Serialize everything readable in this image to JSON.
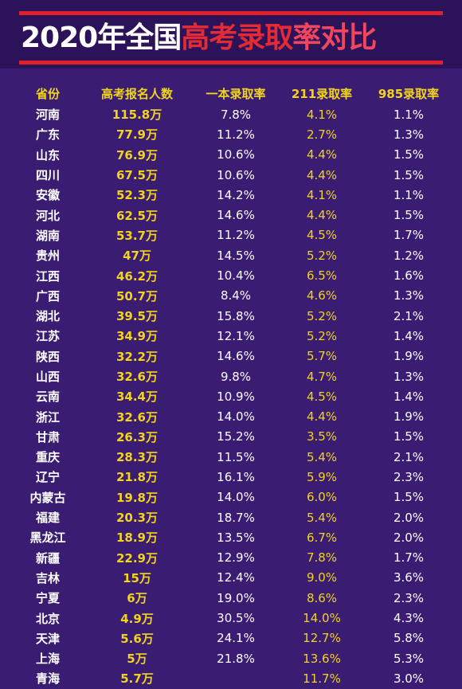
{
  "title": {
    "part1": "2020年全国",
    "part2": "高考录取",
    "part3": "率对比"
  },
  "columns": [
    "省份",
    "高考报名人数",
    "一本录取率",
    "211录取率",
    "985录取率"
  ],
  "rows": [
    [
      "河南",
      "115.8万",
      "7.8%",
      "4.1%",
      "1.1%"
    ],
    [
      "广东",
      "77.9万",
      "11.2%",
      "2.7%",
      "1.3%"
    ],
    [
      "山东",
      "76.9万",
      "10.6%",
      "4.4%",
      "1.5%"
    ],
    [
      "四川",
      "67.5万",
      "10.6%",
      "4.4%",
      "1.5%"
    ],
    [
      "安徽",
      "52.3万",
      "14.2%",
      "4.1%",
      "1.1%"
    ],
    [
      "河北",
      "62.5万",
      "14.6%",
      "4.4%",
      "1.5%"
    ],
    [
      "湖南",
      "53.7万",
      "11.2%",
      "4.5%",
      "1.7%"
    ],
    [
      "贵州",
      "47万",
      "14.5%",
      "5.2%",
      "1.2%"
    ],
    [
      "江西",
      "46.2万",
      "10.4%",
      "6.5%",
      "1.6%"
    ],
    [
      "广西",
      "50.7万",
      "8.4%",
      "4.6%",
      "1.3%"
    ],
    [
      "湖北",
      "39.5万",
      "15.8%",
      "5.2%",
      "2.1%"
    ],
    [
      "江苏",
      "34.9万",
      "12.1%",
      "5.2%",
      "1.4%"
    ],
    [
      "陕西",
      "32.2万",
      "14.6%",
      "5.7%",
      "1.9%"
    ],
    [
      "山西",
      "32.6万",
      "9.8%",
      "4.7%",
      "1.3%"
    ],
    [
      "云南",
      "34.4万",
      "10.9%",
      "4.5%",
      "1.4%"
    ],
    [
      "浙江",
      "32.6万",
      "14.0%",
      "4.4%",
      "1.9%"
    ],
    [
      "甘肃",
      "26.3万",
      "15.2%",
      "3.5%",
      "1.5%"
    ],
    [
      "重庆",
      "28.3万",
      "11.5%",
      "5.4%",
      "2.1%"
    ],
    [
      "辽宁",
      "21.8万",
      "16.1%",
      "5.9%",
      "2.3%"
    ],
    [
      "内蒙古",
      "19.8万",
      "14.0%",
      "6.0%",
      "1.5%"
    ],
    [
      "福建",
      "20.3万",
      "18.7%",
      "5.4%",
      "2.0%"
    ],
    [
      "黑龙江",
      "18.9万",
      "13.5%",
      "6.7%",
      "2.0%"
    ],
    [
      "新疆",
      "22.9万",
      "12.9%",
      "7.8%",
      "1.7%"
    ],
    [
      "吉林",
      "15万",
      "12.4%",
      "9.0%",
      "3.6%"
    ],
    [
      "宁夏",
      "6万",
      "19.0%",
      "8.6%",
      "2.3%"
    ],
    [
      "北京",
      "4.9万",
      "30.5%",
      "14.0%",
      "4.3%"
    ],
    [
      "天津",
      "5.6万",
      "24.1%",
      "12.7%",
      "5.8%"
    ],
    [
      "上海",
      "5万",
      "21.8%",
      "13.6%",
      "5.3%"
    ],
    [
      "青海",
      "5.7万",
      "",
      "11.7%",
      "3.0%"
    ]
  ],
  "colors": {
    "background": "#3a1d72",
    "header_background": "#2b1259",
    "rule": "#e0202a",
    "accent_yellow": "#f2d41c",
    "title_red": "#e32b35",
    "title_pink": "#f0465e"
  }
}
